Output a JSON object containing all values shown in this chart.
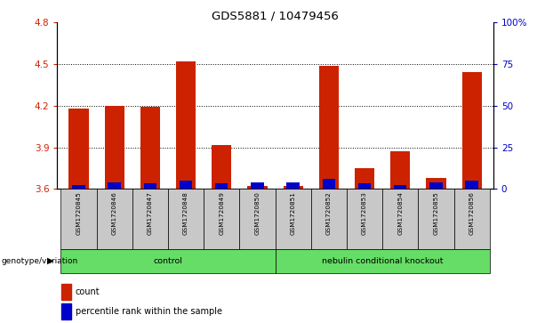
{
  "title": "GDS5881 / 10479456",
  "samples": [
    "GSM1720845",
    "GSM1720846",
    "GSM1720847",
    "GSM1720848",
    "GSM1720849",
    "GSM1720850",
    "GSM1720851",
    "GSM1720852",
    "GSM1720853",
    "GSM1720854",
    "GSM1720855",
    "GSM1720856"
  ],
  "count_values": [
    4.18,
    4.2,
    4.19,
    4.52,
    3.92,
    3.62,
    3.62,
    4.49,
    3.75,
    3.87,
    3.68,
    4.44
  ],
  "percentile_values": [
    3.63,
    3.65,
    3.64,
    3.66,
    3.64,
    3.645,
    3.645,
    3.67,
    3.64,
    3.63,
    3.645,
    3.66
  ],
  "base_value": 3.6,
  "ylim_min": 3.6,
  "ylim_max": 4.8,
  "yticks_left": [
    3.6,
    3.9,
    4.2,
    4.5,
    4.8
  ],
  "yticks_right_vals": [
    0,
    25,
    50,
    75,
    100
  ],
  "groups": [
    {
      "label": "control",
      "start": 0,
      "end": 6
    },
    {
      "label": "nebulin conditional knockout",
      "start": 6,
      "end": 12
    }
  ],
  "group_label": "genotype/variation",
  "bar_color_red": "#CC2200",
  "bar_color_blue": "#0000CC",
  "bar_width": 0.55,
  "sample_bg_color": "#C8C8C8",
  "green_color": "#66DD66",
  "plot_bg_color": "#FFFFFF",
  "legend_items": [
    {
      "color": "#CC2200",
      "label": "count"
    },
    {
      "color": "#0000CC",
      "label": "percentile rank within the sample"
    }
  ]
}
